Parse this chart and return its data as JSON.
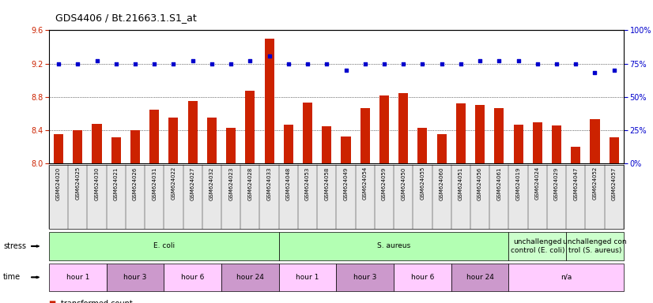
{
  "title": "GDS4406 / Bt.21663.1.S1_at",
  "samples": [
    "GSM624020",
    "GSM624025",
    "GSM624030",
    "GSM624021",
    "GSM624026",
    "GSM624031",
    "GSM624022",
    "GSM624027",
    "GSM624032",
    "GSM624023",
    "GSM624028",
    "GSM624033",
    "GSM624048",
    "GSM624053",
    "GSM624058",
    "GSM624049",
    "GSM624054",
    "GSM624059",
    "GSM624050",
    "GSM624055",
    "GSM624060",
    "GSM624051",
    "GSM624056",
    "GSM624061",
    "GSM624019",
    "GSM624024",
    "GSM624029",
    "GSM624047",
    "GSM624052",
    "GSM624057"
  ],
  "bar_values": [
    8.35,
    8.4,
    8.48,
    8.32,
    8.4,
    8.65,
    8.55,
    8.75,
    8.55,
    8.43,
    8.87,
    9.5,
    8.47,
    8.73,
    8.45,
    8.33,
    8.67,
    8.82,
    8.85,
    8.43,
    8.35,
    8.72,
    8.7,
    8.67,
    8.47,
    8.5,
    8.46,
    8.2,
    8.53,
    8.32
  ],
  "percentile_values": [
    75,
    75,
    77,
    75,
    75,
    75,
    75,
    77,
    75,
    75,
    77,
    81,
    75,
    75,
    75,
    70,
    75,
    75,
    75,
    75,
    75,
    75,
    77,
    77,
    77,
    75,
    75,
    75,
    68,
    70
  ],
  "ylim_left": [
    8.0,
    9.6
  ],
  "ylim_right": [
    0,
    100
  ],
  "yticks_left": [
    8.0,
    8.4,
    8.8,
    9.2,
    9.6
  ],
  "yticks_right": [
    0,
    25,
    50,
    75,
    100
  ],
  "bar_color": "#cc2200",
  "dot_color": "#0000cc",
  "stress_groups": [
    {
      "label": "E. coli",
      "start": 0,
      "end": 12,
      "color": "#b3ffb3"
    },
    {
      "label": "S. aureus",
      "start": 12,
      "end": 24,
      "color": "#b3ffb3"
    },
    {
      "label": "unchallenged\ncontrol (E. coli)",
      "start": 24,
      "end": 27,
      "color": "#ccffcc"
    },
    {
      "label": "unchallenged con\ntrol (S. aureus)",
      "start": 27,
      "end": 30,
      "color": "#ccffcc"
    }
  ],
  "time_groups": [
    {
      "label": "hour 1",
      "start": 0,
      "end": 3,
      "color": "#ffccff"
    },
    {
      "label": "hour 3",
      "start": 3,
      "end": 6,
      "color": "#cc99cc"
    },
    {
      "label": "hour 6",
      "start": 6,
      "end": 9,
      "color": "#ffccff"
    },
    {
      "label": "hour 24",
      "start": 9,
      "end": 12,
      "color": "#cc99cc"
    },
    {
      "label": "hour 1",
      "start": 12,
      "end": 15,
      "color": "#ffccff"
    },
    {
      "label": "hour 3",
      "start": 15,
      "end": 18,
      "color": "#cc99cc"
    },
    {
      "label": "hour 6",
      "start": 18,
      "end": 21,
      "color": "#ffccff"
    },
    {
      "label": "hour 24",
      "start": 21,
      "end": 24,
      "color": "#cc99cc"
    },
    {
      "label": "n/a",
      "start": 24,
      "end": 30,
      "color": "#ffccff"
    }
  ],
  "fig_width": 8.26,
  "fig_height": 3.84,
  "dpi": 100
}
